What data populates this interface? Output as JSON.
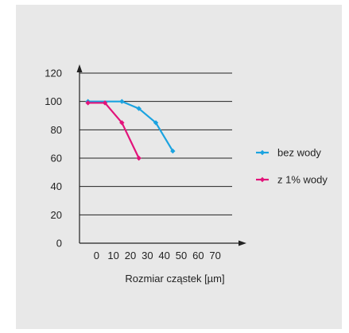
{
  "chart_data": {
    "type": "line",
    "title": "",
    "xlabel": "Rozmiar cząstek [µm]",
    "ylabel": "",
    "x_ticks": [
      "0",
      "10",
      "20",
      "30",
      "40",
      "50",
      "60",
      "70"
    ],
    "y_ticks": [
      "0",
      "20",
      "40",
      "60",
      "80",
      "100",
      "120"
    ],
    "xlim": [
      -10,
      80
    ],
    "ylim": [
      0,
      120
    ],
    "grid": "horizontal",
    "legend_position": "right",
    "series": [
      {
        "name": "bez wody",
        "color": "#1ba3e0",
        "x": [
          -5,
          15,
          25,
          35,
          45
        ],
        "y": [
          100,
          100,
          95,
          85,
          65
        ]
      },
      {
        "name": "z 1% wody",
        "color": "#e2137a",
        "x": [
          -5,
          5,
          15,
          25
        ],
        "y": [
          99,
          99,
          85,
          60
        ]
      }
    ]
  }
}
